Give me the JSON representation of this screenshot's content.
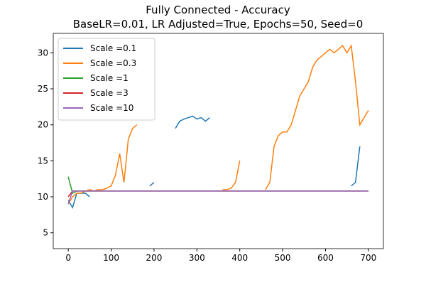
{
  "chart_data": {
    "type": "line",
    "title": "Fully Connected - Accuracy",
    "subtitle": "BaseLR=0.01, LR Adjusted=True, Epochs=50, Seed=0",
    "x": [
      0,
      10,
      20,
      30,
      40,
      50,
      60,
      70,
      80,
      90,
      100,
      110,
      120,
      130,
      140,
      150,
      160,
      170,
      180,
      190,
      200,
      210,
      220,
      230,
      240,
      250,
      260,
      270,
      280,
      290,
      300,
      310,
      320,
      330,
      340,
      350,
      360,
      370,
      380,
      390,
      400,
      410,
      420,
      430,
      440,
      450,
      460,
      470,
      480,
      490,
      500,
      510,
      520,
      530,
      540,
      550,
      560,
      570,
      580,
      590,
      600,
      610,
      620,
      630,
      640,
      650,
      660,
      670,
      680,
      690,
      700
    ],
    "series": [
      {
        "name": "Scale =0.1",
        "color": "#1f77b4",
        "values": [
          9.5,
          8.5,
          10.5,
          10.5,
          10.5,
          10,
          null,
          null,
          null,
          null,
          null,
          null,
          null,
          null,
          null,
          null,
          null,
          null,
          null,
          11.5,
          12,
          null,
          null,
          null,
          null,
          19.5,
          20.5,
          20.8,
          21,
          21.2,
          20.8,
          21,
          20.5,
          21,
          null,
          null,
          null,
          null,
          null,
          null,
          null,
          null,
          null,
          null,
          null,
          null,
          null,
          null,
          null,
          null,
          null,
          null,
          null,
          null,
          null,
          null,
          null,
          null,
          null,
          null,
          null,
          null,
          null,
          null,
          null,
          null,
          11.5,
          12,
          17,
          null,
          null
        ]
      },
      {
        "name": "Scale =0.3",
        "color": "#ff7f0e",
        "values": [
          9,
          10,
          10.5,
          10.5,
          10.8,
          11,
          10.8,
          11,
          11,
          11.2,
          11.5,
          13,
          16,
          12,
          18,
          19.5,
          20,
          null,
          null,
          null,
          null,
          null,
          null,
          null,
          null,
          null,
          null,
          null,
          null,
          null,
          null,
          null,
          null,
          null,
          null,
          null,
          11,
          11,
          11.2,
          12,
          15,
          null,
          null,
          null,
          null,
          null,
          11,
          12,
          17,
          18.5,
          19,
          19,
          20,
          22,
          24,
          25,
          26,
          28,
          29,
          29.5,
          30,
          30.5,
          30,
          30.5,
          31,
          30,
          31,
          26,
          20,
          21,
          22
        ]
      },
      {
        "name": "Scale =1",
        "color": "#2ca02c",
        "values": [
          12.8,
          10.5,
          10.8,
          10.8,
          10.8,
          10.8,
          10.8,
          10.8,
          10.8,
          10.8,
          10.8,
          10.8,
          10.8,
          10.8,
          10.8,
          10.8,
          10.8,
          10.8,
          10.8,
          10.8,
          10.8,
          10.8,
          10.8,
          10.8,
          10.8,
          10.8,
          10.8,
          10.8,
          10.8,
          10.8,
          10.8,
          10.8,
          10.8,
          10.8,
          10.8,
          10.8,
          10.8,
          10.8,
          10.8,
          10.8,
          10.8,
          10.8,
          10.8,
          10.8,
          10.8,
          10.8,
          10.8,
          10.8,
          10.8,
          10.8,
          10.8,
          10.8,
          10.8,
          10.8,
          10.8,
          10.8,
          10.8,
          10.8,
          10.8,
          10.8,
          10.8,
          10.8,
          10.8,
          10.8,
          10.8,
          10.8,
          10.8,
          10.8,
          10.8,
          10.8,
          10.8
        ]
      },
      {
        "name": "Scale =3",
        "color": "#d62728",
        "values": [
          10,
          10.8,
          10.8,
          10.8,
          10.8,
          10.8,
          10.8,
          10.8,
          10.8,
          10.8,
          10.8,
          10.8,
          10.8,
          10.8,
          10.8,
          10.8,
          10.8,
          10.8,
          10.8,
          10.8,
          10.8,
          10.8,
          10.8,
          10.8,
          10.8,
          10.8,
          10.8,
          10.8,
          10.8,
          10.8,
          10.8,
          10.8,
          10.8,
          10.8,
          10.8,
          10.8,
          10.8,
          10.8,
          10.8,
          10.8,
          10.8,
          10.8,
          10.8,
          10.8,
          10.8,
          10.8,
          10.8,
          10.8,
          10.8,
          10.8,
          10.8,
          10.8,
          10.8,
          10.8,
          10.8,
          10.8,
          10.8,
          10.8,
          10.8,
          10.8,
          10.8,
          10.8,
          10.8,
          10.8,
          10.8,
          10.8,
          10.8,
          10.8,
          10.8,
          10.8,
          10.8
        ]
      },
      {
        "name": "Scale =10",
        "color": "#9467bd",
        "values": [
          9,
          10.8,
          10.8,
          10.8,
          10.8,
          10.8,
          10.8,
          10.8,
          10.8,
          10.8,
          10.8,
          10.8,
          10.8,
          10.8,
          10.8,
          10.8,
          10.8,
          10.8,
          10.8,
          10.8,
          10.8,
          10.8,
          10.8,
          10.8,
          10.8,
          10.8,
          10.8,
          10.8,
          10.8,
          10.8,
          10.8,
          10.8,
          10.8,
          10.8,
          10.8,
          10.8,
          10.8,
          10.8,
          10.8,
          10.8,
          10.8,
          10.8,
          10.8,
          10.8,
          10.8,
          10.8,
          10.8,
          10.8,
          10.8,
          10.8,
          10.8,
          10.8,
          10.8,
          10.8,
          10.8,
          10.8,
          10.8,
          10.8,
          10.8,
          10.8,
          10.8,
          10.8,
          10.8,
          10.8,
          10.8,
          10.8,
          10.8,
          10.8,
          10.8,
          10.8,
          10.8
        ]
      }
    ],
    "xlim": [
      -35,
      735
    ],
    "ylim": [
      2.8,
      32.7
    ],
    "xticks": [
      0,
      100,
      200,
      300,
      400,
      500,
      600,
      700
    ],
    "yticks": [
      5,
      10,
      15,
      20,
      25,
      30
    ],
    "legend": "upper left"
  }
}
